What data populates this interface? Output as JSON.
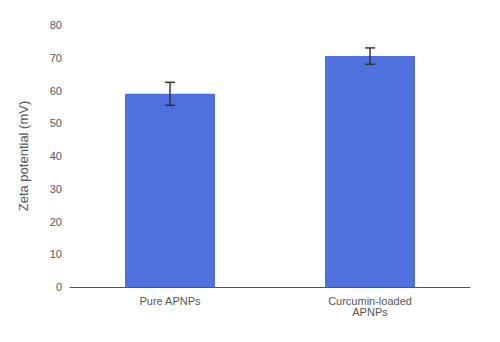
{
  "chart_data": {
    "type": "bar",
    "categories": [
      "Pure APNPs",
      "Curcumin-loaded\nAPNPs"
    ],
    "values": [
      59.0,
      70.5
    ],
    "errors": [
      3.5,
      2.5
    ],
    "ylabel": "Zeta potential (mV)",
    "ylim": [
      0,
      80
    ],
    "yticks": [
      0,
      10,
      20,
      30,
      40,
      50,
      60,
      70,
      80
    ],
    "grid": false
  }
}
